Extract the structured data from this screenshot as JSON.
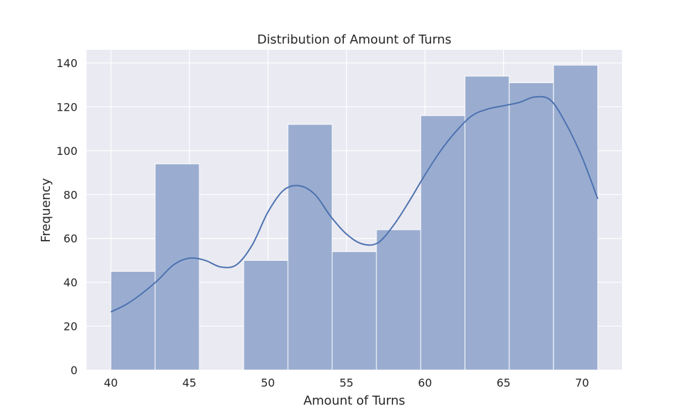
{
  "chart_data": {
    "type": "bar",
    "subtype": "histogram",
    "title": "Distribution of Amount of Turns",
    "xlabel": "Amount of Turns",
    "ylabel": "Frequency",
    "xlim": [
      38.45,
      72.55
    ],
    "ylim": [
      0,
      146
    ],
    "xticks": [
      40,
      45,
      50,
      55,
      60,
      65,
      70
    ],
    "yticks": [
      0,
      20,
      40,
      60,
      80,
      100,
      120,
      140
    ],
    "bins": [
      {
        "start": 40.0,
        "end": 42.818,
        "count": 45
      },
      {
        "start": 42.818,
        "end": 45.636,
        "count": 94
      },
      {
        "start": 45.636,
        "end": 48.455,
        "count": 0
      },
      {
        "start": 48.455,
        "end": 51.273,
        "count": 50
      },
      {
        "start": 51.273,
        "end": 54.091,
        "count": 112
      },
      {
        "start": 54.091,
        "end": 56.909,
        "count": 54
      },
      {
        "start": 56.909,
        "end": 59.727,
        "count": 64
      },
      {
        "start": 59.727,
        "end": 62.545,
        "count": 116
      },
      {
        "start": 62.545,
        "end": 65.364,
        "count": 134
      },
      {
        "start": 65.364,
        "end": 68.182,
        "count": 131
      },
      {
        "start": 68.182,
        "end": 71.0,
        "count": 139
      }
    ],
    "kde": {
      "x": [
        40,
        41,
        42,
        43,
        44,
        45,
        46,
        47,
        48,
        49,
        50,
        51,
        52,
        53,
        54,
        55,
        56,
        57,
        58,
        59,
        60,
        61,
        62,
        63,
        64,
        65,
        66,
        67,
        68,
        69,
        70,
        71
      ],
      "y": [
        26.5,
        30,
        35,
        41,
        48,
        51,
        50,
        47,
        48,
        57,
        72,
        82,
        84,
        80,
        70,
        62,
        57.5,
        58,
        66,
        77,
        89,
        100,
        109,
        116,
        119,
        120.5,
        122,
        124.5,
        123,
        112,
        97,
        78
      ]
    },
    "grid": true,
    "legend": "none",
    "colors": {
      "bar_fill": "#9aadd0",
      "bar_edge": "#ffffff",
      "kde_line": "#4c72b0",
      "plot_background": "#eaeaf2",
      "grid": "#ffffff",
      "text": "#262626"
    }
  }
}
